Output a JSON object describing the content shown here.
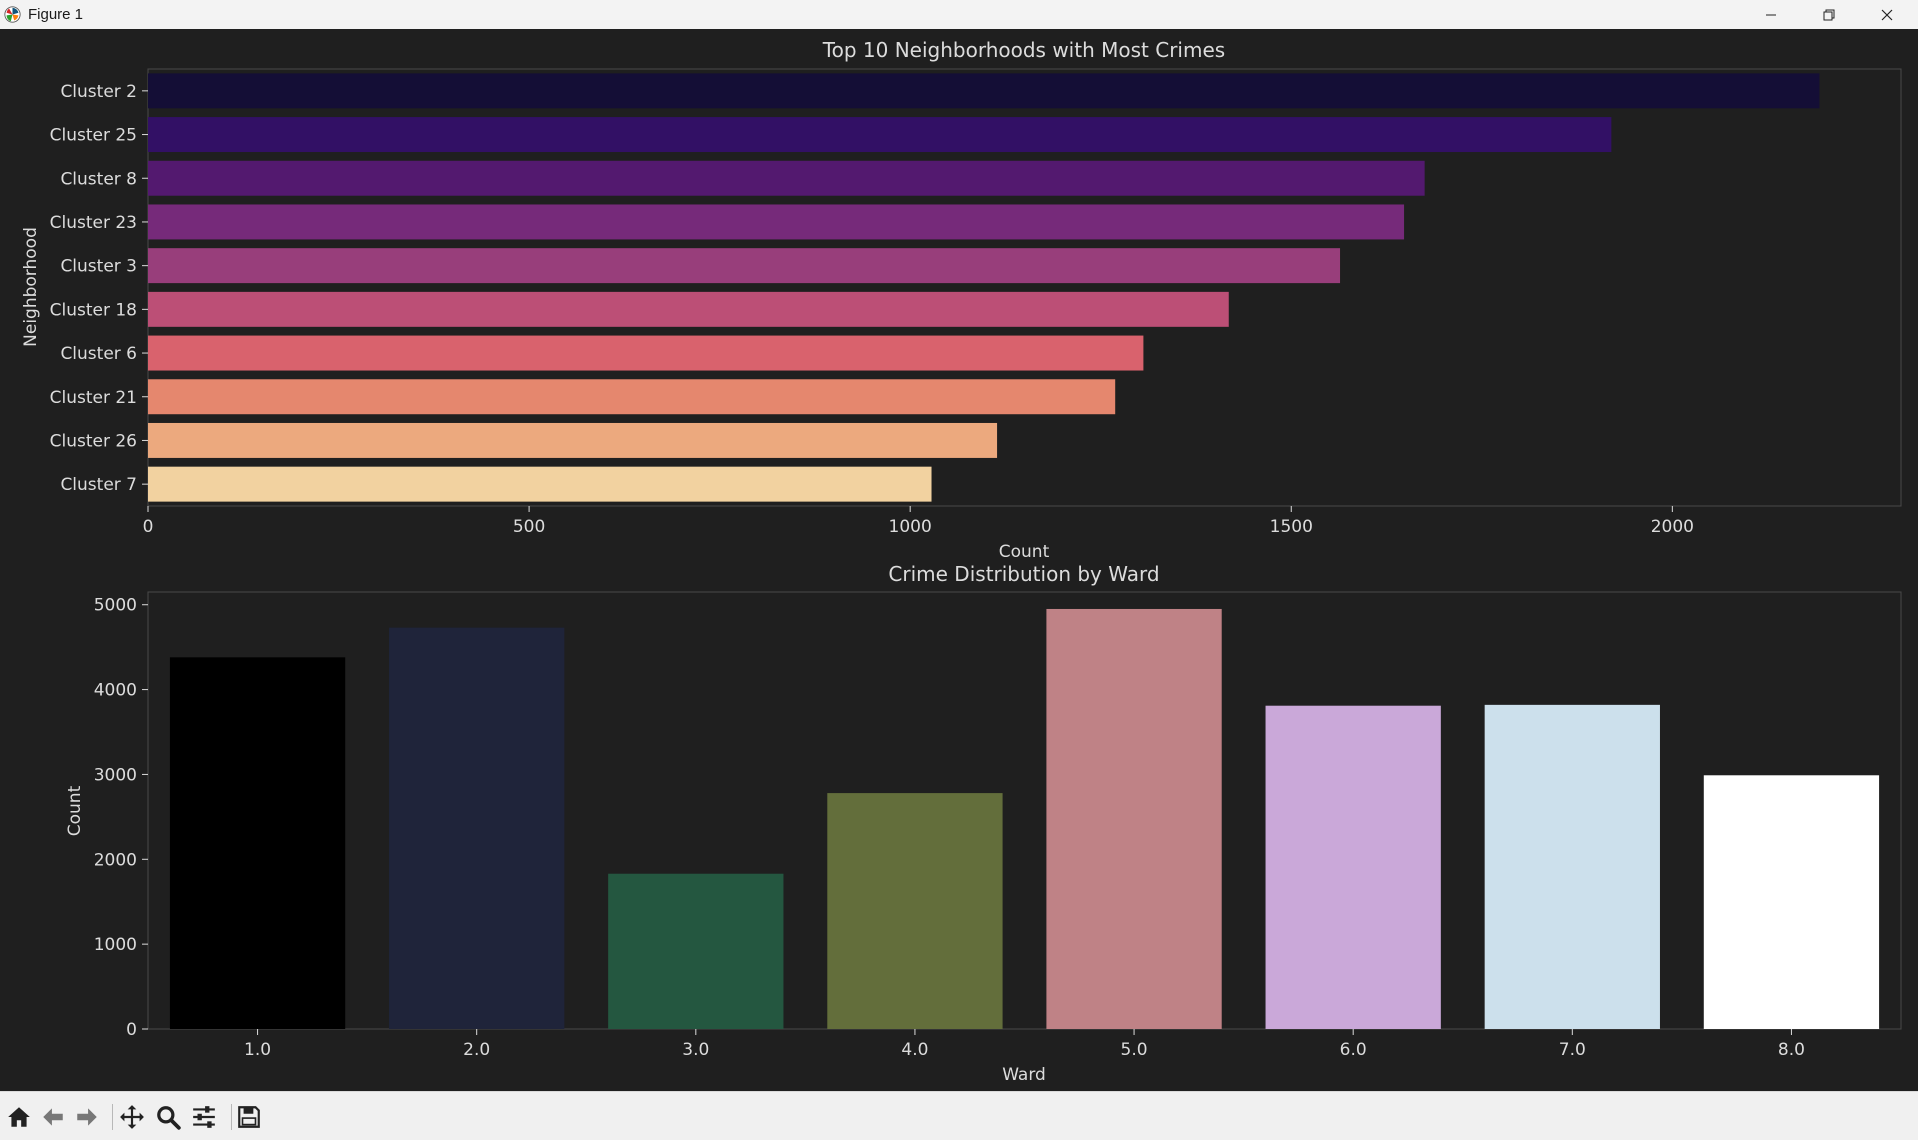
{
  "window": {
    "title": "Figure 1"
  },
  "chart_data": [
    {
      "type": "bar",
      "orientation": "horizontal",
      "title": "Top 10 Neighborhoods with Most Crimes",
      "xlabel": "Count",
      "ylabel": "Neighborhood",
      "categories": [
        "Cluster 2",
        "Cluster 25",
        "Cluster 8",
        "Cluster 23",
        "Cluster 3",
        "Cluster 18",
        "Cluster 6",
        "Cluster 21",
        "Cluster 26",
        "Cluster 7"
      ],
      "values": [
        2193,
        1920,
        1675,
        1648,
        1564,
        1418,
        1306,
        1269,
        1114,
        1028
      ],
      "colors": [
        "#140e36",
        "#321065",
        "#53196f",
        "#762a7a",
        "#983e7b",
        "#bc4f76",
        "#d9626d",
        "#e5876e",
        "#eca97e",
        "#f2d2a0"
      ],
      "xlim": [
        0,
        2300
      ],
      "xticks": [
        0,
        500,
        1000,
        1500,
        2000
      ],
      "tick_labels": [
        "0",
        "500",
        "1000",
        "1500",
        "2000"
      ],
      "grid": false,
      "legend": "none"
    },
    {
      "type": "bar",
      "title": "Crime Distribution by Ward",
      "xlabel": "Ward",
      "ylabel": "Count",
      "categories": [
        "1.0",
        "2.0",
        "3.0",
        "4.0",
        "5.0",
        "6.0",
        "7.0",
        "8.0"
      ],
      "values": [
        4380,
        4730,
        1830,
        2780,
        4950,
        3810,
        3820,
        2990
      ],
      "colors": [
        "#000000",
        "#1f243a",
        "#245740",
        "#636e3b",
        "#bf8286",
        "#caa8d9",
        "#cce0ec",
        "#ffffff"
      ],
      "ylim": [
        0,
        5150
      ],
      "yticks": [
        0,
        1000,
        2000,
        3000,
        4000,
        5000
      ],
      "tick_labels": [
        "0",
        "1000",
        "2000",
        "3000",
        "4000",
        "5000"
      ],
      "grid": false,
      "legend": "none"
    }
  ],
  "toolbar": {
    "buttons": [
      {
        "name": "home-button",
        "icon": "home-icon"
      },
      {
        "name": "back-button",
        "icon": "arrow-left-icon"
      },
      {
        "name": "forward-button",
        "icon": "arrow-right-icon"
      },
      {
        "name": "pan-button",
        "icon": "move-icon"
      },
      {
        "name": "zoom-button",
        "icon": "magnifier-icon"
      },
      {
        "name": "configure-subplots-button",
        "icon": "sliders-icon"
      },
      {
        "name": "save-button",
        "icon": "floppy-disk-icon"
      }
    ]
  }
}
